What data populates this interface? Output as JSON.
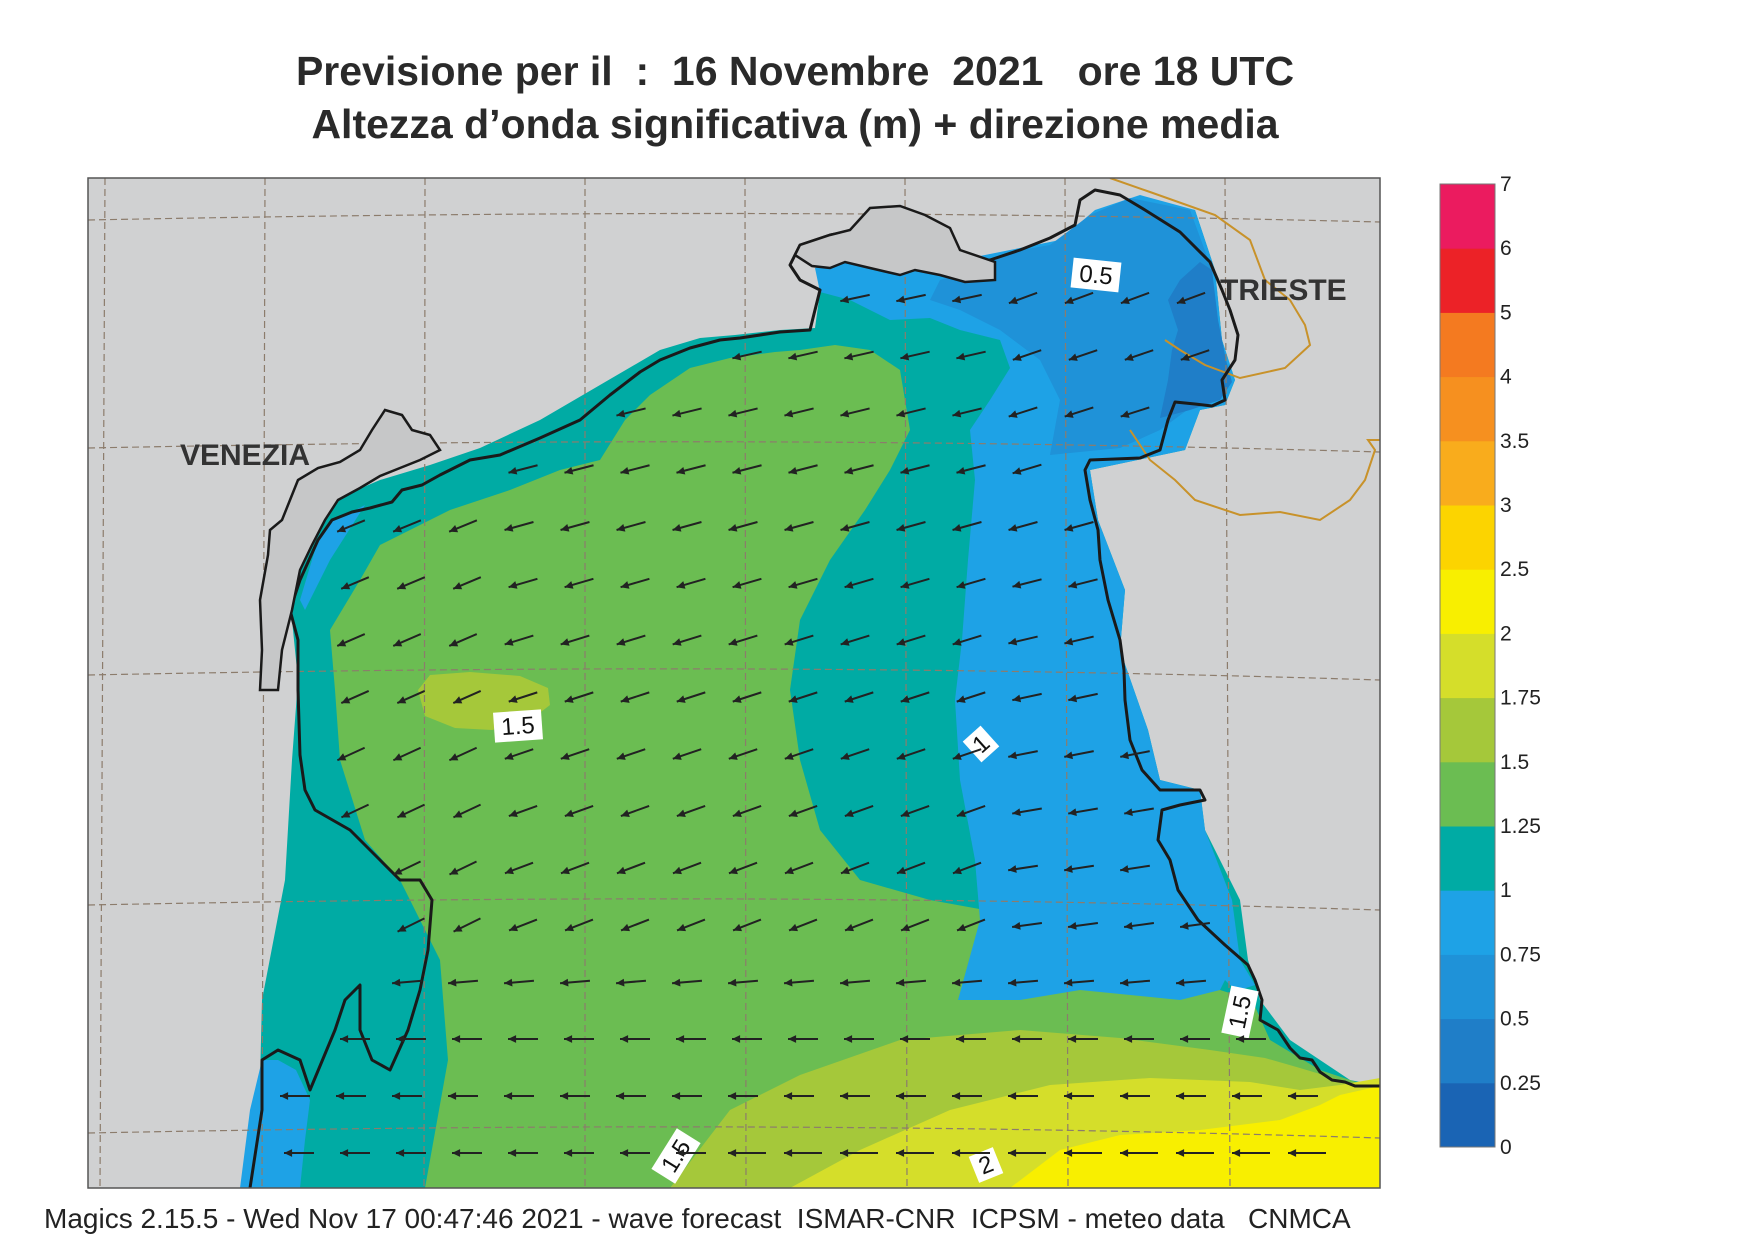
{
  "title_line1": "Previsione per il  :  16 Novembre  2021   ore 18 UTC",
  "title_line2": "Altezza d’onda significativa (m) + direzione media",
  "footer": "Magics 2.15.5 - Wed Nov 17 00:47:46 2021 - wave forecast  ISMAR-CNR  ICPSM - meteo data   CNMCA",
  "cities": [
    {
      "name": "VENEZIA"
    },
    {
      "name": "TRIESTE"
    }
  ],
  "contour_labels": [
    "0.5",
    "1",
    "1.5",
    "1.5",
    "1.5",
    "2"
  ],
  "legend": {
    "levels": [
      "0",
      "0.25",
      "0.5",
      "0.75",
      "1",
      "1.25",
      "1.5",
      "1.75",
      "2",
      "2.5",
      "3",
      "3.5",
      "4",
      "5",
      "6",
      "7"
    ],
    "colors": [
      "#1a64b4",
      "#1f7ec8",
      "#1f92d8",
      "#1ea2e6",
      "#00aba4",
      "#6bbd52",
      "#a5c83a",
      "#d5de2a",
      "#f8ef00",
      "#fcd400",
      "#f9ac1c",
      "#f6901f",
      "#f47a20",
      "#ec2227",
      "#eb1b5f"
    ]
  },
  "colors": {
    "land": "#d0d1d2",
    "coast": "#1a1a1a",
    "border": "#c8922a",
    "grid": "#8c7c6c",
    "arrow": "#222222"
  }
}
